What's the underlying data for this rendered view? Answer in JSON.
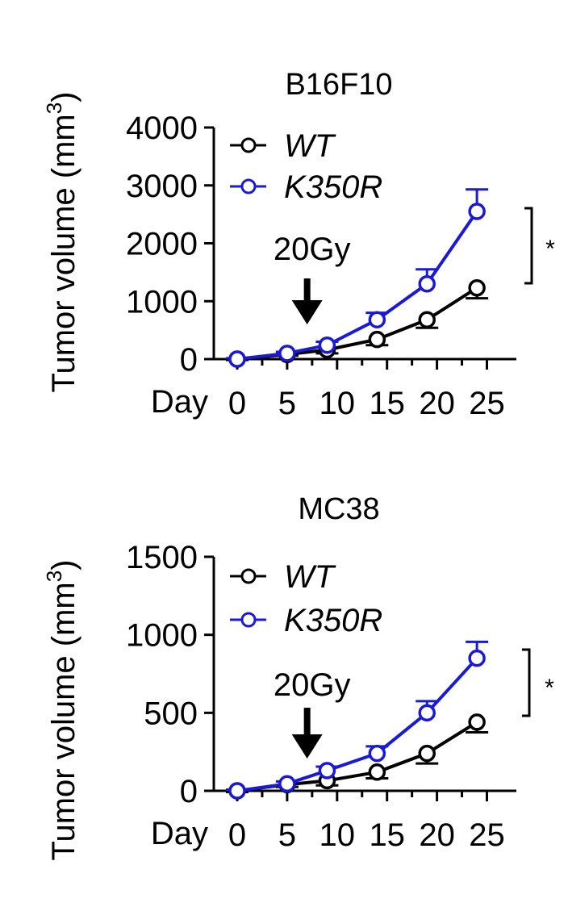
{
  "colors": {
    "WT": "#000000",
    "K350R": "#1a1ad6"
  },
  "chart_data": [
    {
      "type": "line",
      "title": "B16F10",
      "xlabel": "Day",
      "ylabel_main": "Tumor volume (mm",
      "ylabel_sup": "3",
      "ylabel_close": ")",
      "x_ticks": [
        "0",
        "5",
        "10",
        "15",
        "20",
        "25"
      ],
      "y_ticks": [
        "0",
        "1000",
        "2000",
        "3000",
        "4000"
      ],
      "ylim": [
        0,
        4000
      ],
      "xlim": [
        0,
        25
      ],
      "annotation": "20Gy",
      "annotation_day": 7,
      "significance": "*",
      "series": [
        {
          "name": "WT",
          "x": [
            0,
            5,
            9,
            14,
            19,
            24
          ],
          "values": [
            0,
            80,
            160,
            340,
            680,
            1230
          ],
          "errors": [
            15,
            20,
            60,
            100,
            140,
            180
          ]
        },
        {
          "name": "K350R",
          "x": [
            0,
            5,
            9,
            14,
            19,
            24
          ],
          "values": [
            0,
            100,
            240,
            680,
            1300,
            2550
          ],
          "errors": [
            15,
            25,
            60,
            120,
            250,
            380
          ]
        }
      ]
    },
    {
      "type": "line",
      "title": "MC38",
      "xlabel": "Day",
      "ylabel_main": "Tumor volume (mm",
      "ylabel_sup": "3",
      "ylabel_close": ")",
      "x_ticks": [
        "0",
        "5",
        "10",
        "15",
        "20",
        "25"
      ],
      "y_ticks": [
        "0",
        "500",
        "1000",
        "1500"
      ],
      "ylim": [
        0,
        1500
      ],
      "xlim": [
        0,
        25
      ],
      "annotation": "20Gy",
      "annotation_day": 7,
      "significance": "*",
      "series": [
        {
          "name": "WT",
          "x": [
            0,
            5,
            9,
            14,
            19,
            24
          ],
          "values": [
            0,
            40,
            65,
            120,
            240,
            440
          ],
          "errors": [
            8,
            15,
            30,
            40,
            65,
            65
          ]
        },
        {
          "name": "K350R",
          "x": [
            0,
            5,
            9,
            14,
            19,
            24
          ],
          "values": [
            0,
            45,
            130,
            240,
            500,
            850
          ],
          "errors": [
            8,
            15,
            25,
            45,
            75,
            105
          ]
        }
      ]
    }
  ]
}
